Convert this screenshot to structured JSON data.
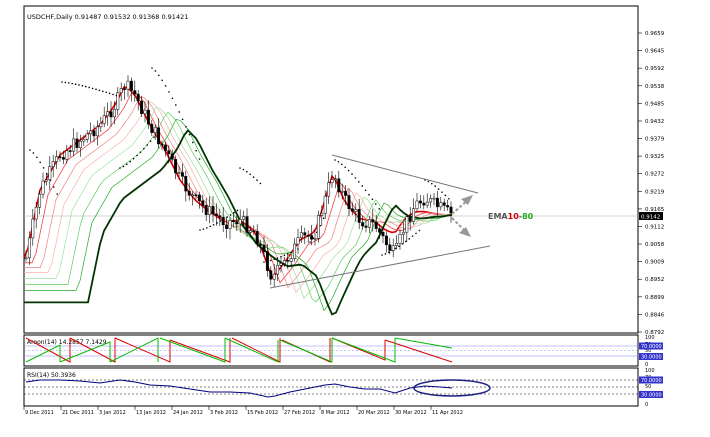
{
  "main": {
    "title": "USDCHF,Daily  0.91487 0.91532 0.91368 0.91421",
    "price_axis": [
      "0.9659",
      "0.9645",
      "0.9592",
      "0.9538",
      "0.9485",
      "0.9432",
      "0.9379",
      "0.9325",
      "0.9272",
      "0.9219",
      "0.9165",
      "0.9112",
      "0.9058",
      "0.9009",
      "0.8952",
      "0.8899",
      "0.8846",
      "0.8792"
    ],
    "current_price": "0.9142",
    "ema_label_prefix": "EMA",
    "ema_label_fast": "10",
    "ema_label_sep": "-",
    "ema_label_slow": "80",
    "colors": {
      "bull": "#000000",
      "bear": "#000000",
      "ema_fast": "#e00000",
      "ema_slow": "#003300",
      "psar": "#000000"
    }
  },
  "aroon": {
    "title": "Aroon(14) 14.2857 7.1429",
    "axis": [
      "100",
      "70",
      "50",
      "30",
      "0"
    ],
    "badge_upper": "70.0000",
    "badge_lower": "30.0000",
    "colors": {
      "up": "#00bb00",
      "down": "#dd0000"
    }
  },
  "rsi": {
    "title": "RSI(14) 50.3936",
    "axis": [
      "100",
      "70",
      "50",
      "30",
      "0"
    ],
    "badge_upper": "70.0000",
    "badge_lower": "30.0000",
    "color": "#000080"
  },
  "time_axis": [
    "9 Dec 2011",
    "21 Dec 2011",
    "3 Jan 2012",
    "13 Jan 2012",
    "24 Jan 2012",
    "3 Feb 2012",
    "15 Feb 2012",
    "27 Feb 2012",
    "8 Mar 2012",
    "20 Mar 2012",
    "30 Mar 2012",
    "11 Apr 2012"
  ]
}
